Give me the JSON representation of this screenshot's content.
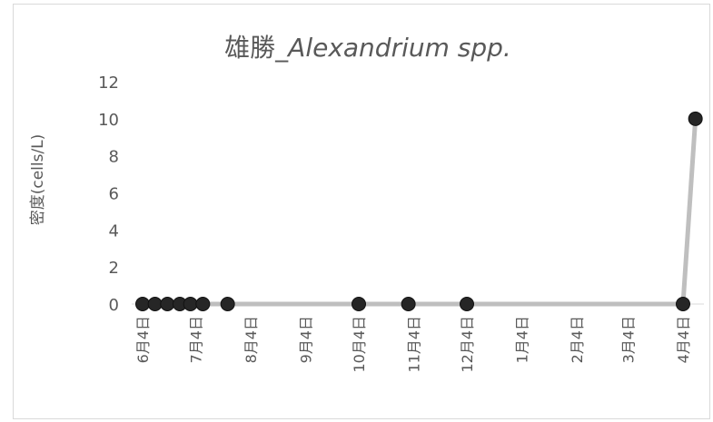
{
  "chart_data": {
    "type": "line",
    "title": "雄勝_",
    "title_species": "Alexandrium spp.",
    "xlabel": "",
    "ylabel": "密度(cells/L)",
    "ylim": [
      0,
      12
    ],
    "yticks": [
      0,
      2,
      4,
      6,
      8,
      10,
      12
    ],
    "x_tick_labels": [
      "6月4日",
      "7月4日",
      "8月4日",
      "9月4日",
      "10月4日",
      "11月4日",
      "12月4日",
      "1月4日",
      "2月4日",
      "3月4日",
      "4月4日"
    ],
    "x_tick_dates": [
      "06-04",
      "07-04",
      "08-04",
      "09-04",
      "10-04",
      "11-04",
      "12-04",
      "01-04",
      "02-04",
      "03-04",
      "04-04"
    ],
    "grid": false,
    "legend": "none",
    "series": [
      {
        "points": [
          {
            "date": "06-04",
            "value": 0
          },
          {
            "date": "06-11",
            "value": 0
          },
          {
            "date": "06-18",
            "value": 0
          },
          {
            "date": "06-25",
            "value": 0
          },
          {
            "date": "07-01",
            "value": 0
          },
          {
            "date": "07-08",
            "value": 0
          },
          {
            "date": "07-22",
            "value": 0
          },
          {
            "date": "10-04",
            "value": 0
          },
          {
            "date": "11-01",
            "value": 0
          },
          {
            "date": "12-04",
            "value": 0
          },
          {
            "date": "04-04",
            "value": 0
          },
          {
            "date": "04-11",
            "value": 10
          }
        ]
      }
    ],
    "colors": {
      "line": "#bfbfbf",
      "marker": "#262626",
      "text": "#595959",
      "axis": "#d9d9d9"
    }
  }
}
